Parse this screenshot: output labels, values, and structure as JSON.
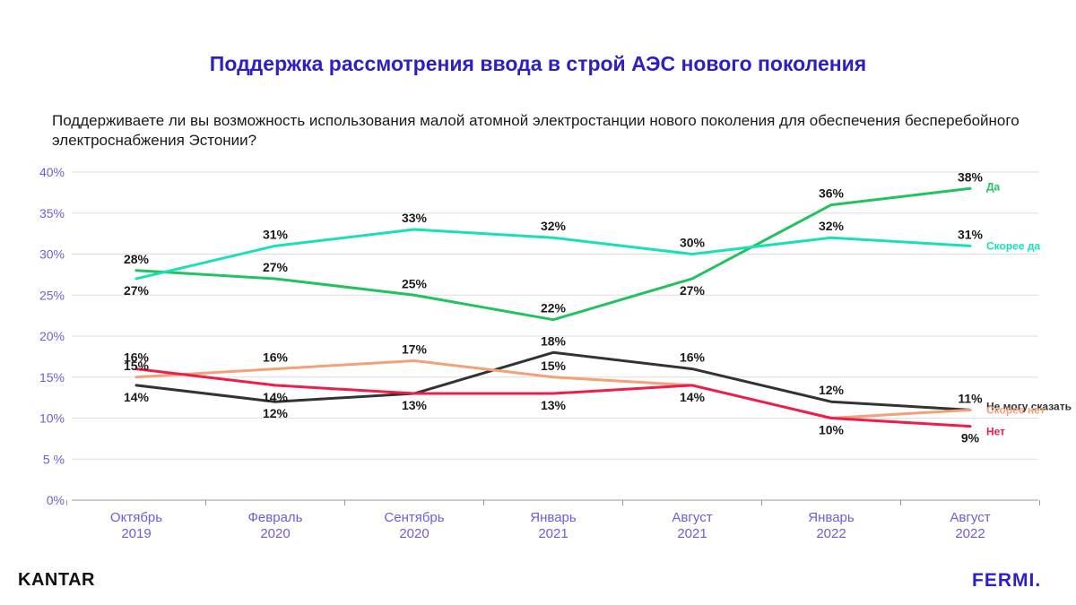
{
  "title": "Поддержка рассмотрения ввода в строй АЭС нового поколения",
  "subtitle": "Поддерживаете ли вы возможность использования малой атомной электростанции нового поколения для обеспечения бесперебойного электроснабжения Эстонии?",
  "logos": {
    "left": "KANTAR",
    "right": "FERMI."
  },
  "chart_data": {
    "type": "line",
    "categories": [
      [
        "Октябрь",
        "2019"
      ],
      [
        "Февраль",
        "2020"
      ],
      [
        "Сентябрь",
        "2020"
      ],
      [
        "Январь",
        "2021"
      ],
      [
        "Август",
        "2021"
      ],
      [
        "Январь",
        "2022"
      ],
      [
        "Август",
        "2022"
      ]
    ],
    "ylim": [
      0,
      40
    ],
    "yticks": [
      0,
      5,
      10,
      15,
      20,
      25,
      30,
      35,
      40
    ],
    "ytick_labels": [
      "0%",
      "5 %",
      "10%",
      "15%",
      "20%",
      "25%",
      "30%",
      "35%",
      "40%"
    ],
    "grid": true,
    "legend": "end-of-line labels",
    "series": [
      {
        "name": "Да",
        "color": "#22c35e",
        "values": [
          28,
          27,
          25,
          22,
          27,
          36,
          38
        ],
        "labels": [
          "28%",
          "27%",
          "25%",
          "22%",
          "27%",
          "36%",
          "38%"
        ],
        "label_side": [
          "above",
          "above",
          "above",
          "above",
          "below",
          "above",
          "above"
        ]
      },
      {
        "name": "Скорее да",
        "color": "#19e0b5",
        "values": [
          27,
          31,
          33,
          32,
          30,
          32,
          31
        ],
        "labels": [
          "27%",
          "31%",
          "33%",
          "32%",
          "30%",
          "32%",
          "31%"
        ],
        "label_side": [
          "below",
          "above",
          "above",
          "above",
          "above",
          "above",
          "above"
        ]
      },
      {
        "name": "Не могу сказать",
        "color": "#333333",
        "values": [
          14,
          12,
          13,
          18,
          16,
          12,
          11
        ],
        "labels": [
          "14%",
          "12%",
          "13%",
          "18%",
          "16%",
          "12%",
          "11%"
        ],
        "label_side": [
          "below",
          "below",
          "below",
          "above",
          "above",
          "above",
          "above"
        ]
      },
      {
        "name": "Скорее нет",
        "color": "#f4a07a",
        "values": [
          15,
          16,
          17,
          15,
          14,
          10,
          11
        ],
        "labels": [
          "15%",
          "16%",
          "17%",
          "15%",
          "",
          "",
          ""
        ],
        "label_side": [
          "above",
          "above",
          "above",
          "above",
          "above",
          "above",
          "above"
        ]
      },
      {
        "name": "Нет",
        "color": "#ee1d4b",
        "values": [
          16,
          14,
          13,
          13,
          14,
          10,
          9
        ],
        "labels": [
          "16%",
          "14%",
          "",
          "13%",
          "14%",
          "10%",
          "9%"
        ],
        "label_side": [
          "above",
          "below",
          "below",
          "below",
          "below",
          "below",
          "below"
        ]
      }
    ]
  }
}
